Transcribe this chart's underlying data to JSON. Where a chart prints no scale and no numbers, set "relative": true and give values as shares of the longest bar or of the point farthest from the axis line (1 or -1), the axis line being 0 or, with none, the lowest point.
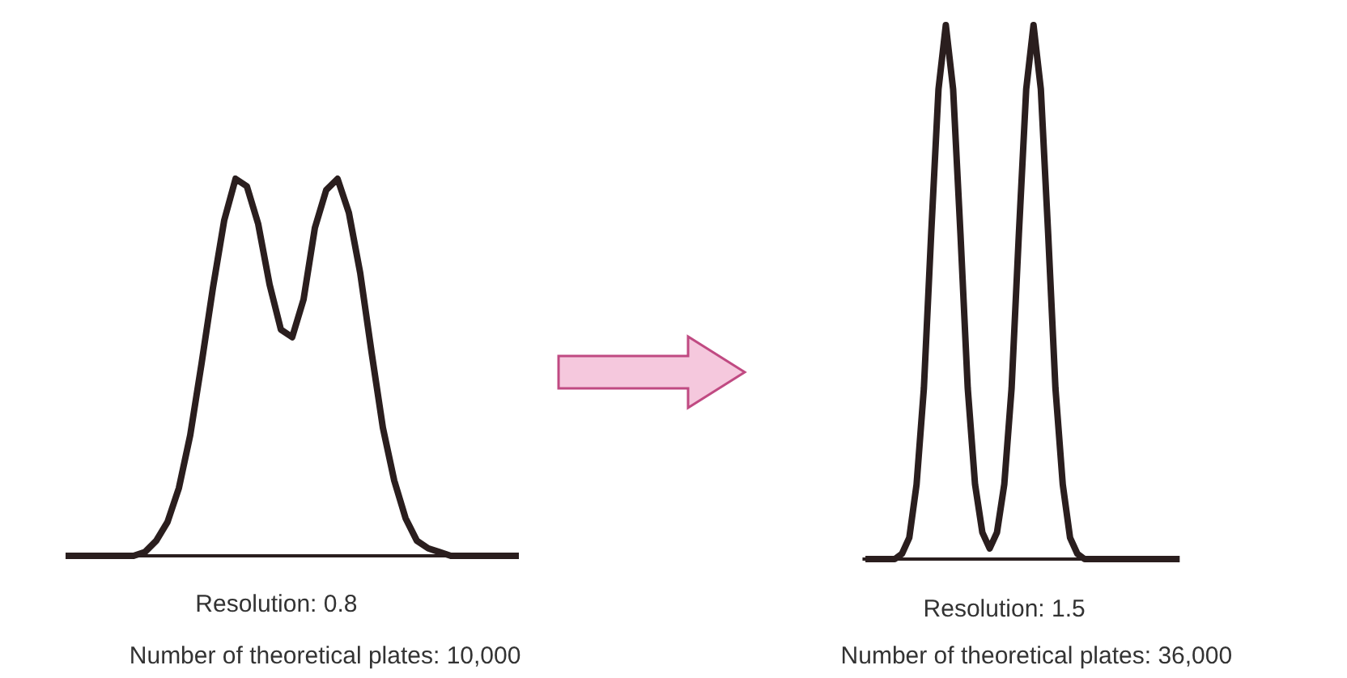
{
  "chart_data": [
    {
      "type": "line",
      "relative": true,
      "grid": false,
      "categories": [
        null,
        null,
        null,
        null,
        null,
        null,
        null,
        null,
        null,
        null,
        null,
        null,
        null,
        null,
        null,
        null,
        null,
        null,
        null,
        null,
        null,
        null,
        null,
        null,
        null,
        null,
        null,
        null,
        null,
        null,
        null,
        null,
        null,
        null,
        null,
        null,
        null,
        null,
        null,
        null,
        null
      ],
      "series": [
        {
          "color": "#2a1e1e",
          "values": [
            0,
            0,
            0,
            0,
            0,
            0,
            0,
            0.01,
            0.04,
            0.09,
            0.18,
            0.32,
            0.51,
            0.71,
            0.89,
            1,
            0.98,
            0.88,
            0.72,
            0.6,
            0.58,
            0.68,
            0.87,
            0.97,
            1,
            0.91,
            0.75,
            0.54,
            0.34,
            0.2,
            0.1,
            0.04,
            0.02,
            0.01,
            0,
            0,
            0,
            0,
            0,
            0,
            0
          ]
        }
      ],
      "annotations": [
        "Resolution: 0.8",
        "Number of theoretical plates: 10,000"
      ]
    },
    {
      "type": "line",
      "relative": true,
      "grid": false,
      "categories": [
        null,
        null,
        null,
        null,
        null,
        null,
        null,
        null,
        null,
        null,
        null,
        null,
        null,
        null,
        null,
        null,
        null,
        null,
        null,
        null,
        null,
        null,
        null,
        null,
        null,
        null,
        null,
        null,
        null,
        null,
        null,
        null,
        null,
        null,
        null,
        null,
        null,
        null,
        null,
        null,
        null,
        null,
        null,
        null
      ],
      "series": [
        {
          "color": "#2a1e1e",
          "values": [
            0,
            0,
            0,
            0,
            0,
            0.01,
            0.04,
            0.14,
            0.32,
            0.61,
            0.88,
            1,
            0.88,
            0.61,
            0.32,
            0.14,
            0.05,
            0.02,
            0.05,
            0.14,
            0.32,
            0.61,
            0.88,
            1,
            0.88,
            0.61,
            0.32,
            0.14,
            0.04,
            0.01,
            0,
            0,
            0,
            0,
            0,
            0,
            0,
            0,
            0,
            0,
            0,
            0,
            0,
            0
          ]
        }
      ],
      "annotations": [
        "Resolution: 1.5",
        "Number of theoretical plates: 36,000"
      ]
    }
  ]
}
